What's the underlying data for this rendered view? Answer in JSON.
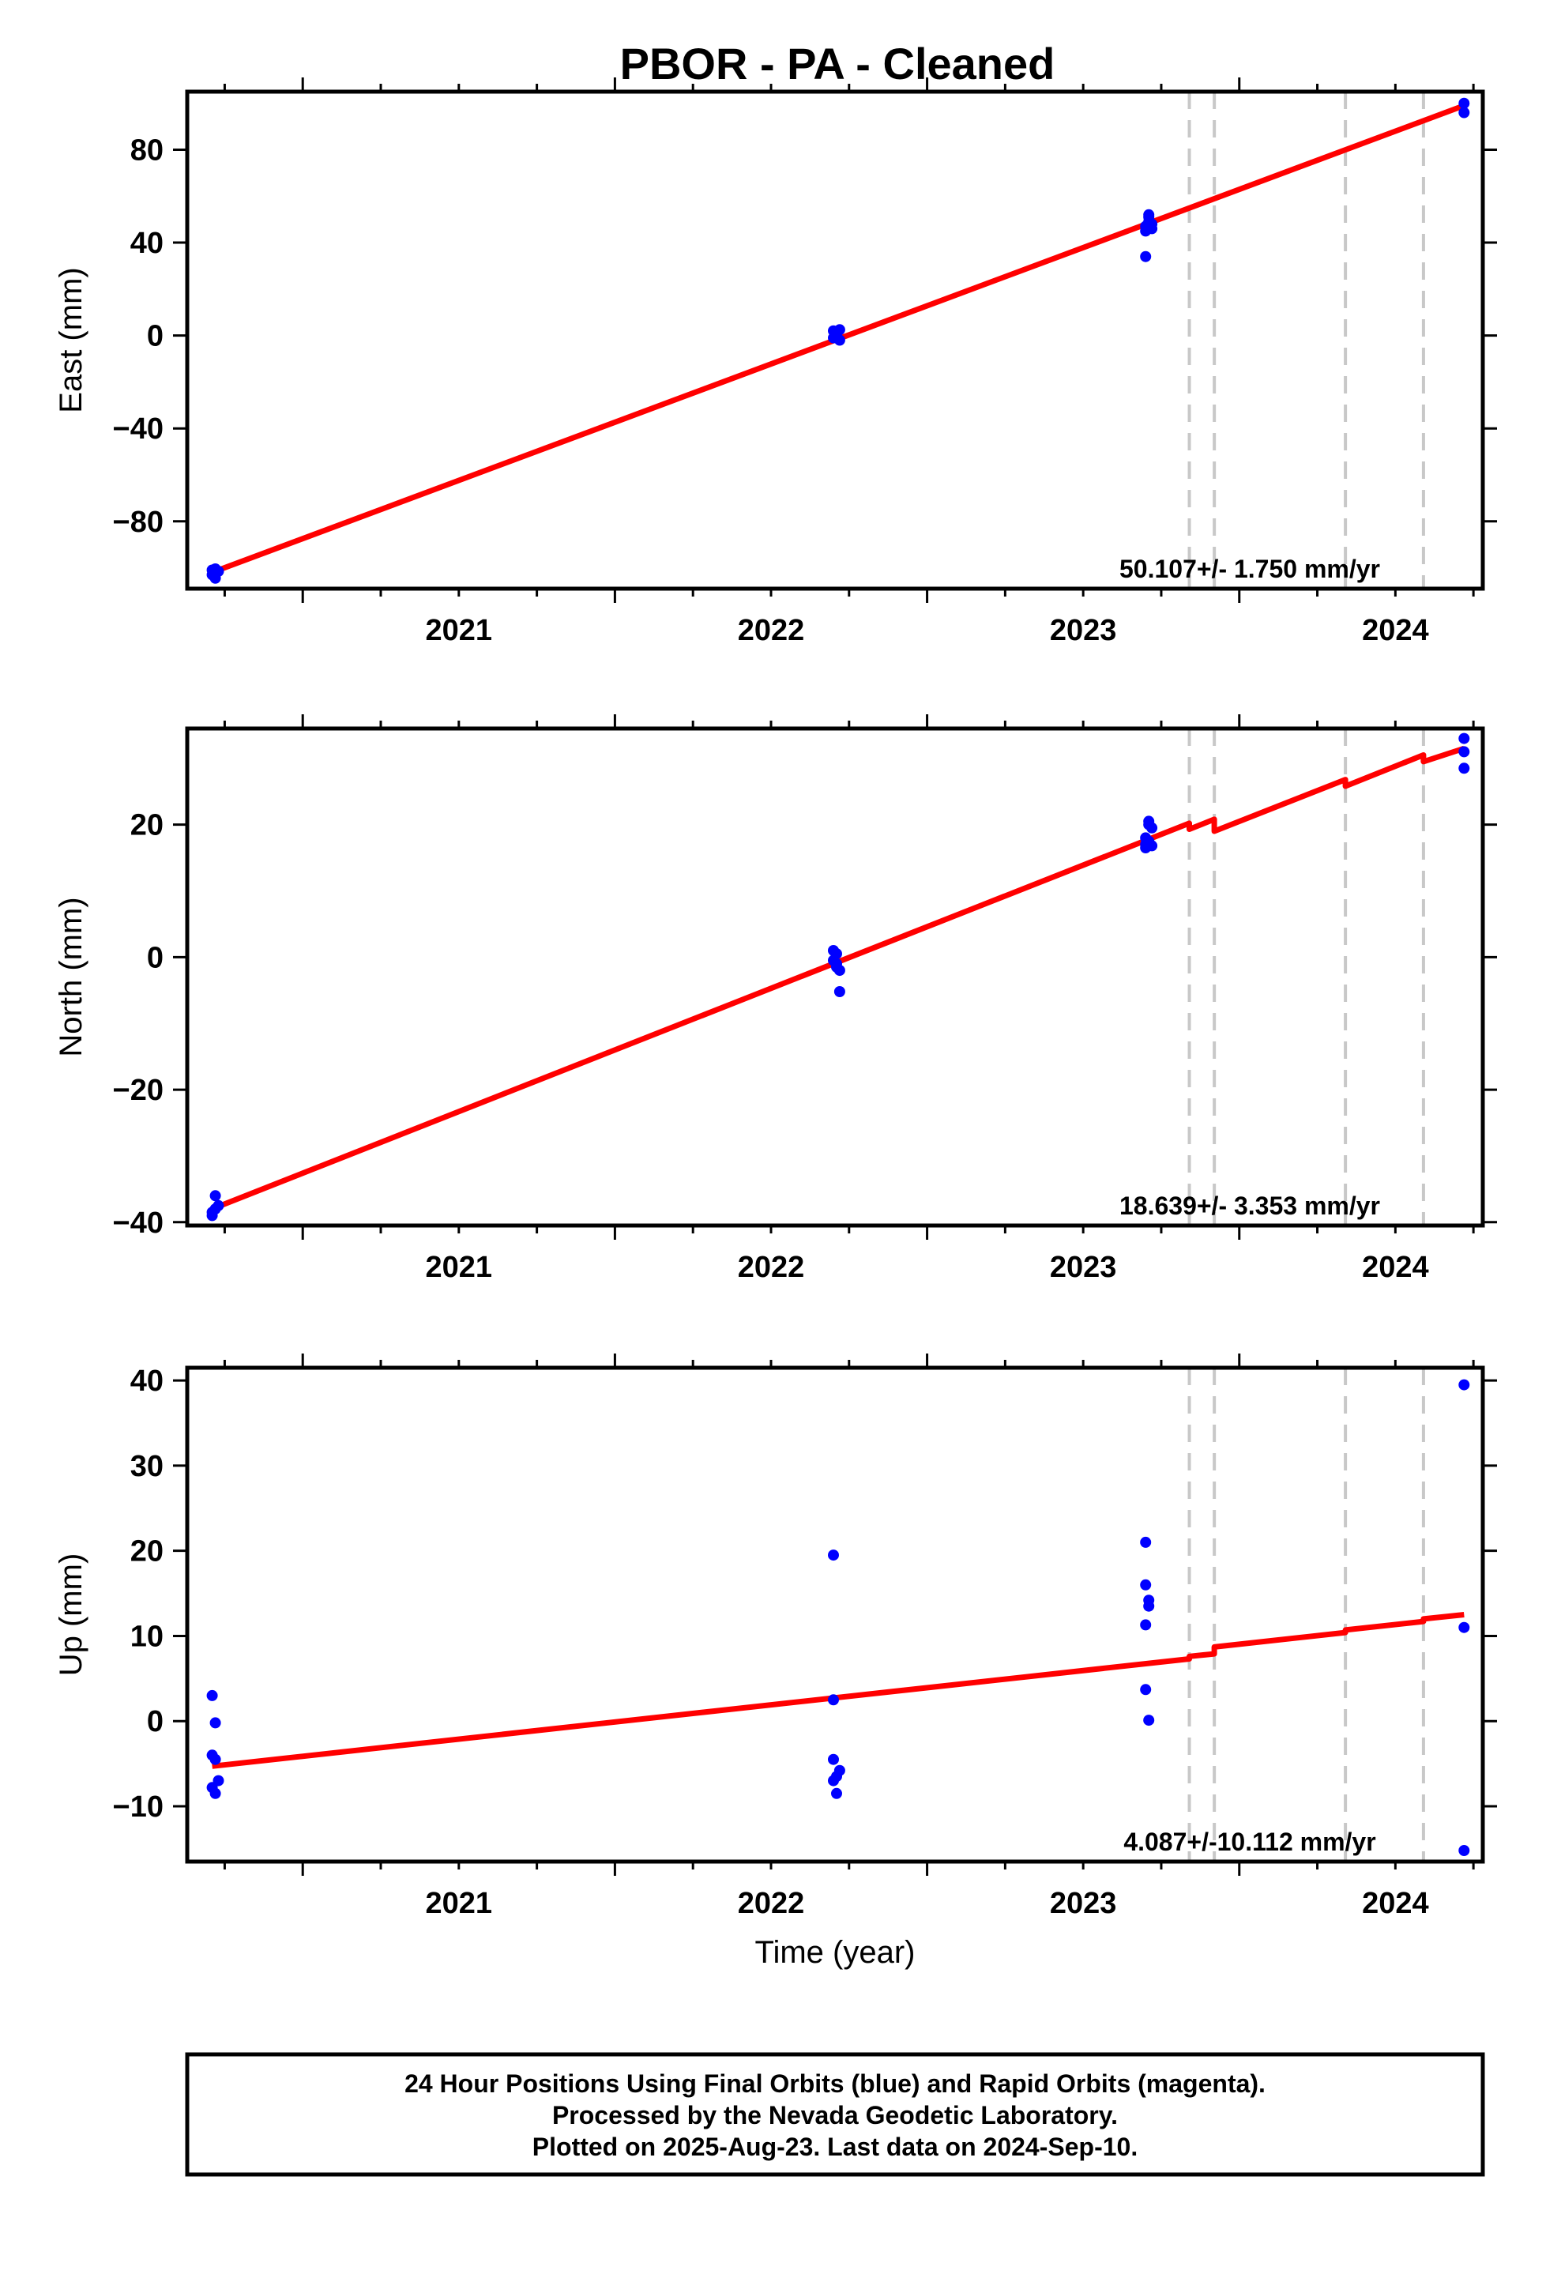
{
  "title": "PBOR  - PA - Cleaned",
  "footer": {
    "lines": [
      "24 Hour Positions Using Final Orbits (blue) and Rapid Orbits (magenta).",
      "Processed by the Nevada Geodetic Laboratory.",
      "Plotted on 2025-Aug-23. Last data on 2024-Sep-10."
    ]
  },
  "colors": {
    "final_orbits": "#0000ff",
    "fit_line": "#ff0000",
    "offsets": "#c8c8c8",
    "frame": "#000000"
  },
  "chart_data": [
    {
      "type": "scatter",
      "ylabel": "East (mm)",
      "xlabel": "",
      "xlim": [
        2020.63,
        2024.78
      ],
      "ylim": [
        -109,
        105
      ],
      "xticks": [
        2021,
        2022,
        2023,
        2024
      ],
      "yticks": [
        -80,
        -40,
        0,
        40,
        80
      ],
      "rate": "50.107+/- 1.750 mm/yr",
      "offset_dates": [
        2023.84,
        2023.92,
        2024.34,
        2024.59
      ],
      "fit": [
        [
          2020.71,
          -102
        ],
        [
          2024.72,
          99
        ]
      ],
      "points": [
        [
          2020.71,
          -101
        ],
        [
          2020.71,
          -103
        ],
        [
          2020.72,
          -104.5
        ],
        [
          2020.72,
          -100.5
        ],
        [
          2020.72,
          -102.5
        ],
        [
          2020.73,
          -101.5
        ],
        [
          2022.7,
          2
        ],
        [
          2022.7,
          -1
        ],
        [
          2022.71,
          0
        ],
        [
          2022.71,
          1
        ],
        [
          2022.72,
          -2
        ],
        [
          2022.72,
          2.5
        ],
        [
          2022.71,
          -0.5
        ],
        [
          2023.7,
          34
        ],
        [
          2023.7,
          45
        ],
        [
          2023.7,
          47
        ],
        [
          2023.71,
          49
        ],
        [
          2023.71,
          51
        ],
        [
          2023.71,
          52
        ],
        [
          2023.72,
          46
        ],
        [
          2023.72,
          48
        ],
        [
          2024.72,
          100
        ],
        [
          2024.72,
          96
        ]
      ]
    },
    {
      "type": "scatter",
      "ylabel": "North (mm)",
      "xlabel": "",
      "xlim": [
        2020.63,
        2024.78
      ],
      "ylim": [
        -40.5,
        34.5
      ],
      "xticks": [
        2021,
        2022,
        2023,
        2024
      ],
      "yticks": [
        -40,
        -20,
        0,
        20
      ],
      "rate": "18.639+/- 3.353 mm/yr",
      "offset_dates": [
        2023.84,
        2023.92,
        2024.34,
        2024.59
      ],
      "fit": [
        [
          2020.71,
          -38
        ],
        [
          2023.84,
          20.2
        ],
        [
          2023.84,
          19.3
        ],
        [
          2023.92,
          20.8
        ],
        [
          2023.92,
          19.0
        ],
        [
          2024.34,
          26.8
        ],
        [
          2024.34,
          25.8
        ],
        [
          2024.59,
          30.5
        ],
        [
          2024.59,
          29.5
        ],
        [
          2024.72,
          31.5
        ]
      ],
      "points": [
        [
          2020.71,
          -39
        ],
        [
          2020.71,
          -38.5
        ],
        [
          2020.72,
          -36
        ],
        [
          2020.72,
          -38
        ],
        [
          2020.73,
          -37.5
        ],
        [
          2022.7,
          1
        ],
        [
          2022.7,
          -0.5
        ],
        [
          2022.71,
          -1
        ],
        [
          2022.71,
          0.5
        ],
        [
          2022.72,
          -2
        ],
        [
          2022.72,
          -5.2
        ],
        [
          2022.71,
          -1.5
        ],
        [
          2023.7,
          16.5
        ],
        [
          2023.7,
          17
        ],
        [
          2023.7,
          18
        ],
        [
          2023.71,
          20
        ],
        [
          2023.71,
          20.5
        ],
        [
          2023.71,
          17.5
        ],
        [
          2023.72,
          16.8
        ],
        [
          2023.72,
          19.5
        ],
        [
          2024.72,
          33
        ],
        [
          2024.72,
          31
        ],
        [
          2024.72,
          28.5
        ]
      ]
    },
    {
      "type": "scatter",
      "ylabel": "Up (mm)",
      "xlabel": "Time (year)",
      "xlim": [
        2020.63,
        2024.78
      ],
      "ylim": [
        -16.5,
        41.5
      ],
      "xticks": [
        2021,
        2022,
        2023,
        2024
      ],
      "yticks": [
        -10,
        0,
        10,
        20,
        30,
        40
      ],
      "rate": "4.087+/-10.112 mm/yr",
      "offset_dates": [
        2023.84,
        2023.92,
        2024.34,
        2024.59
      ],
      "fit": [
        [
          2020.71,
          -5.3
        ],
        [
          2023.84,
          7.3
        ],
        [
          2023.84,
          7.6
        ],
        [
          2023.92,
          7.9
        ],
        [
          2023.92,
          8.7
        ],
        [
          2024.34,
          10.4
        ],
        [
          2024.34,
          10.7
        ],
        [
          2024.59,
          11.7
        ],
        [
          2024.59,
          12.0
        ],
        [
          2024.72,
          12.5
        ]
      ],
      "points": [
        [
          2020.71,
          3.0
        ],
        [
          2020.71,
          -4.0
        ],
        [
          2020.71,
          -7.8
        ],
        [
          2020.72,
          -0.2
        ],
        [
          2020.72,
          -4.5
        ],
        [
          2020.72,
          -8.5
        ],
        [
          2020.73,
          -7.0
        ],
        [
          2022.7,
          19.5
        ],
        [
          2022.7,
          2.5
        ],
        [
          2022.7,
          -4.5
        ],
        [
          2022.7,
          -7.0
        ],
        [
          2022.71,
          -8.5
        ],
        [
          2022.71,
          -6.5
        ],
        [
          2022.72,
          -5.8
        ],
        [
          2023.7,
          21.0
        ],
        [
          2023.7,
          16.0
        ],
        [
          2023.7,
          11.3
        ],
        [
          2023.71,
          13.5
        ],
        [
          2023.71,
          14.2
        ],
        [
          2023.7,
          3.7
        ],
        [
          2023.71,
          0.1
        ],
        [
          2024.72,
          39.5
        ],
        [
          2024.72,
          11.0
        ],
        [
          2024.72,
          -15.2
        ]
      ]
    }
  ]
}
